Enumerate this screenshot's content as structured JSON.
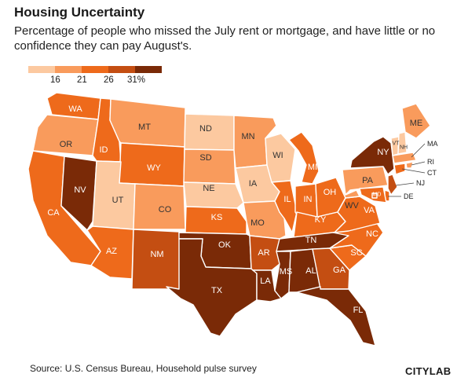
{
  "header": {
    "title": "Housing Uncertainty",
    "subtitle": "Percentage of people who missed the July rent or mortgage, and have little or no confidence they can pay August's."
  },
  "legend": {
    "ticks": [
      "16",
      "21",
      "26",
      "31%"
    ],
    "colors": [
      "#fcc9a0",
      "#f99b5c",
      "#ee6a1b",
      "#c44e12",
      "#7a2a07"
    ]
  },
  "map_data": {
    "WA": 3,
    "OR": 2,
    "CA": 3,
    "NV": 5,
    "ID": 3,
    "MT": 2,
    "WY": 3,
    "UT": 1,
    "AZ": 3,
    "CO": 2,
    "NM": 4,
    "ND": 1,
    "SD": 2,
    "NE": 1,
    "KS": 3,
    "OK": 5,
    "TX": 5,
    "MN": 2,
    "IA": 1,
    "MO": 2,
    "AR": 4,
    "LA": 5,
    "WI": 1,
    "IL": 3,
    "MI": 3,
    "IN": 3,
    "OH": 3,
    "KY": 3,
    "TN": 5,
    "MS": 5,
    "AL": 5,
    "GA": 4,
    "FL": 5,
    "SC": 3,
    "NC": 3,
    "VA": 3,
    "WV": 2,
    "PA": 2,
    "NY": 5,
    "ME": 2,
    "VT": 1,
    "NH": 1,
    "MA": 2,
    "RI": 2,
    "CT": 3,
    "NJ": 4,
    "DE": 3,
    "MD": 3,
    "DC": 3
  },
  "footer": {
    "source": "Source: U.S. Census Bureau, Household pulse survey",
    "logo": "CITYLAB"
  }
}
